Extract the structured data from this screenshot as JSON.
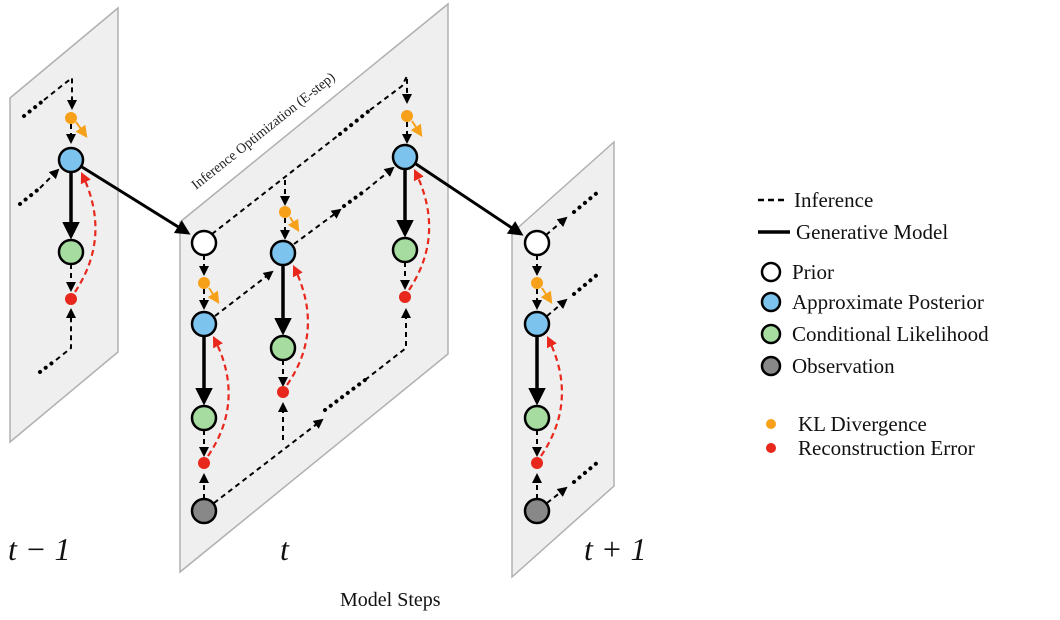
{
  "time_steps": {
    "prev": "t − 1",
    "curr": "t",
    "next": "t + 1"
  },
  "panel_title": "Inference Optimization (E-step)",
  "caption": "Model Steps",
  "legend": {
    "lines": [
      {
        "key": "inference",
        "label": "Inference"
      },
      {
        "key": "generative",
        "label": "Generative Model"
      }
    ],
    "nodes": [
      {
        "key": "prior",
        "label": "Prior",
        "color": "#ffffff"
      },
      {
        "key": "posterior",
        "label": "Approximate Posterior",
        "color": "#7cc4ee"
      },
      {
        "key": "likelihood",
        "label": "Conditional Likelihood",
        "color": "#a6dca0"
      },
      {
        "key": "observation",
        "label": "Observation",
        "color": "#888888"
      }
    ],
    "dots": [
      {
        "key": "kl",
        "label": "KL Divergence",
        "color": "#f7a11a"
      },
      {
        "key": "recon",
        "label": "Reconstruction Error",
        "color": "#e8281c"
      }
    ]
  },
  "colors": {
    "panel_fill": "#efefef",
    "panel_edge": "#b0b0b0",
    "recon_arrow": "#e8281c",
    "line": "#000000"
  }
}
